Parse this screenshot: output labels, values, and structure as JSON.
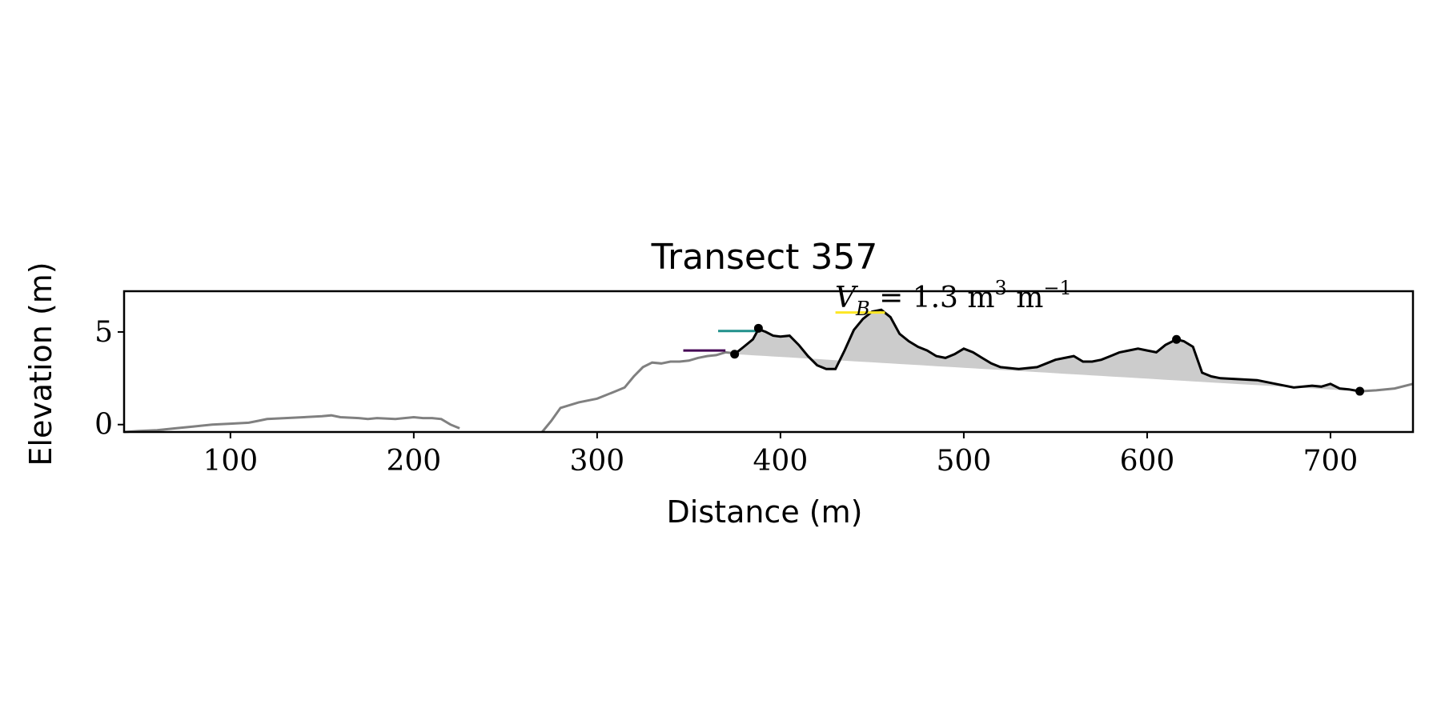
{
  "chart_data": {
    "type": "line",
    "title": "Transect 357",
    "xlabel": "Distance (m)",
    "ylabel": "Elevation (m)",
    "xlim": [
      42,
      745
    ],
    "ylim": [
      -0.4,
      7.2
    ],
    "xticks": [
      100,
      200,
      300,
      400,
      500,
      600,
      700
    ],
    "yticks": [
      0,
      5
    ],
    "grid": false,
    "legend": "none",
    "annotation": {
      "text_v": "V",
      "text_sub": "B",
      "text_main": " = 1.3 m",
      "text_sup1": "3",
      "text_mid": " m",
      "text_sup2": "−1",
      "x": 430,
      "y": 6.1
    },
    "colors": {
      "profile": "#808080",
      "highlight": "#000000",
      "fill": "#cccccc",
      "purple": "#440154",
      "teal": "#21918c",
      "yellow": "#fde725"
    },
    "series": [
      {
        "role": "full-profile-left",
        "x": [
          42,
          50,
          60,
          70,
          80,
          90,
          100,
          110,
          115,
          120,
          130,
          140,
          150,
          155,
          160,
          170,
          175,
          180,
          190,
          200,
          205,
          210,
          215,
          220,
          225
        ],
        "y": [
          -0.4,
          -0.35,
          -0.3,
          -0.2,
          -0.1,
          0.0,
          0.05,
          0.1,
          0.2,
          0.3,
          0.35,
          0.4,
          0.45,
          0.5,
          0.4,
          0.35,
          0.3,
          0.35,
          0.3,
          0.4,
          0.35,
          0.35,
          0.3,
          0.0,
          -0.2
        ]
      },
      {
        "role": "full-profile-right",
        "x": [
          270,
          275,
          280,
          290,
          300,
          310,
          315,
          320,
          325,
          330,
          335,
          340,
          345,
          350,
          355,
          360,
          365,
          370,
          375
        ],
        "y": [
          -0.4,
          0.2,
          0.9,
          1.2,
          1.4,
          1.8,
          2.0,
          2.6,
          3.1,
          3.35,
          3.3,
          3.4,
          3.4,
          3.45,
          3.6,
          3.7,
          3.75,
          3.9,
          3.85
        ]
      },
      {
        "role": "dune-section",
        "x": [
          375,
          380,
          385,
          388,
          392,
          396,
          400,
          405,
          410,
          415,
          420,
          425,
          430,
          435,
          440,
          445,
          450,
          455,
          460,
          465,
          470,
          475,
          480,
          485,
          490,
          495,
          500,
          505,
          510,
          515,
          520,
          530,
          540,
          545,
          550,
          555,
          560,
          565,
          570,
          575,
          580,
          585,
          590,
          595,
          600,
          605,
          610,
          616,
          620,
          625,
          630,
          635,
          640,
          650,
          660,
          670,
          680,
          690,
          695,
          700,
          705,
          710,
          716
        ],
        "y": [
          3.8,
          4.2,
          4.6,
          5.15,
          5.0,
          4.8,
          4.75,
          4.8,
          4.3,
          3.7,
          3.2,
          3.0,
          3.0,
          4.0,
          5.1,
          5.7,
          6.1,
          6.2,
          5.8,
          4.9,
          4.5,
          4.2,
          4.0,
          3.7,
          3.6,
          3.8,
          4.1,
          3.9,
          3.6,
          3.3,
          3.1,
          3.0,
          3.1,
          3.3,
          3.5,
          3.6,
          3.7,
          3.4,
          3.4,
          3.5,
          3.7,
          3.9,
          4.0,
          4.1,
          4.0,
          3.9,
          4.3,
          4.6,
          4.5,
          4.2,
          2.8,
          2.6,
          2.5,
          2.45,
          2.4,
          2.2,
          2.0,
          2.1,
          2.05,
          2.2,
          1.95,
          1.9,
          1.8
        ]
      },
      {
        "role": "full-profile-tail",
        "x": [
          716,
          725,
          735,
          745
        ],
        "y": [
          1.8,
          1.85,
          1.95,
          2.2
        ]
      }
    ],
    "baseline": {
      "x": [
        375,
        716
      ],
      "y": [
        3.8,
        1.8
      ]
    },
    "markers": [
      {
        "x": 375,
        "y": 3.8
      },
      {
        "x": 388,
        "y": 5.2
      },
      {
        "x": 616,
        "y": 4.6
      },
      {
        "x": 716,
        "y": 1.8
      }
    ],
    "level_lines": [
      {
        "color_key": "purple",
        "x": [
          347,
          370
        ],
        "y": 4.0
      },
      {
        "color_key": "teal",
        "x": [
          366,
          388
        ],
        "y": 5.05
      },
      {
        "color_key": "yellow",
        "x": [
          430,
          457
        ],
        "y": 6.05
      }
    ]
  }
}
